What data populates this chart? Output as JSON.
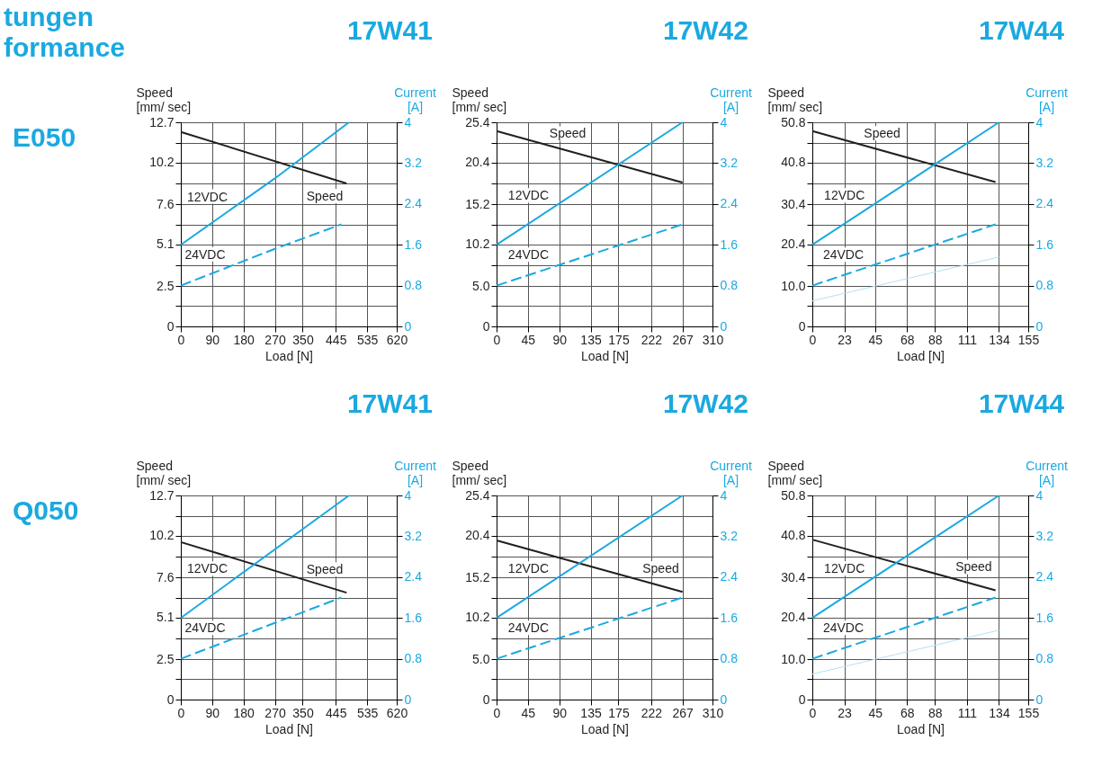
{
  "chart_data": [
    {
      "type": "line",
      "title": "17W41",
      "xlabel": "Load [N]",
      "ylabel": "Speed\n[mm/ sec]",
      "y2label": "Current\n[A]",
      "annotations": [
        "tungen",
        "formance",
        "E050"
      ],
      "grid": true,
      "xlim": [
        0,
        620
      ],
      "xticks": [
        0,
        90,
        180,
        270,
        350,
        445,
        535,
        620
      ],
      "ylim": [
        0,
        12.7
      ],
      "yticks": [
        0,
        {
          "value": 1.27,
          "label": null
        },
        2.5,
        {
          "value": 3.81,
          "label": null
        },
        5.1,
        {
          "value": 6.35,
          "label": null
        },
        7.6,
        {
          "value": 8.89,
          "label": null
        },
        10.2,
        {
          "value": 11.43,
          "label": null
        },
        12.7
      ],
      "y2lim": [
        0,
        4
      ],
      "y2ticks": [
        0,
        0.8,
        1.6,
        2.4,
        3.2,
        4
      ],
      "series": [
        {
          "name": "Speed",
          "color": "#231f20",
          "x": [
            0,
            476
          ],
          "values": [
            12.1,
            8.9
          ]
        },
        {
          "name": "12VDC",
          "color": "#1aa9e0",
          "axis": "y2",
          "x": [
            0,
            270,
            483
          ],
          "values": [
            1.6,
            2.9,
            4.0
          ]
        },
        {
          "name": "24VDC",
          "color": "#1aa9e0",
          "axis": "y2",
          "line_style": "dashed",
          "x": [
            0,
            270,
            461
          ],
          "values": [
            0.8,
            1.52,
            2.0
          ]
        }
      ]
    },
    {
      "type": "line",
      "title": "17W42",
      "xlabel": "Load [N]",
      "ylabel": "Speed\n[mm/ sec]",
      "y2label": "Current\n[A]",
      "grid": true,
      "xlim": [
        0,
        310
      ],
      "xticks": [
        0,
        45,
        90,
        135,
        175,
        222,
        267,
        310
      ],
      "ylim": [
        0,
        25.4
      ],
      "yticks": [
        0,
        {
          "value": 2.54,
          "label": null
        },
        {
          "value": 5,
          "label": "5.0"
        },
        {
          "value": 7.62,
          "label": null
        },
        10.2,
        {
          "value": 12.7,
          "label": null
        },
        15.2,
        {
          "value": 17.78,
          "label": null
        },
        20.4,
        {
          "value": 22.86,
          "label": null
        },
        25.4
      ],
      "y2lim": [
        0,
        4
      ],
      "y2ticks": [
        0,
        0.8,
        1.6,
        2.4,
        3.2,
        4
      ],
      "series": [
        {
          "name": "Speed",
          "color": "#231f20",
          "x": [
            0,
            267
          ],
          "values": [
            24.3,
            17.9
          ]
        },
        {
          "name": "12VDC",
          "color": "#1aa9e0",
          "axis": "y2",
          "x": [
            0,
            267
          ],
          "values": [
            1.6,
            4.0
          ]
        },
        {
          "name": "24VDC",
          "color": "#1aa9e0",
          "axis": "y2",
          "line_style": "dashed",
          "x": [
            0,
            267
          ],
          "values": [
            0.8,
            2.0
          ]
        }
      ]
    },
    {
      "type": "line",
      "title": "17W44",
      "xlabel": "Load [N]",
      "ylabel": "Speed\n[mm/ sec]",
      "y2label": "Current\n[A]",
      "grid": true,
      "xlim": [
        0,
        155
      ],
      "xticks": [
        0,
        23,
        45,
        68,
        88,
        111,
        134,
        155
      ],
      "ylim": [
        0,
        50.8
      ],
      "yticks": [
        0,
        {
          "value": 5.08,
          "label": null
        },
        {
          "value": 10,
          "label": "10.0"
        },
        {
          "value": 15.24,
          "label": null
        },
        20.4,
        {
          "value": 25.4,
          "label": null
        },
        30.4,
        {
          "value": 35.56,
          "label": null
        },
        40.8,
        {
          "value": 45.72,
          "label": null
        },
        50.8
      ],
      "y2lim": [
        0,
        4
      ],
      "y2ticks": [
        0,
        0.8,
        1.6,
        2.4,
        3.2,
        4
      ],
      "series": [
        {
          "name": "Speed",
          "color": "#231f20",
          "x": [
            0,
            131.5
          ],
          "values": [
            48.6,
            35.9
          ]
        },
        {
          "name": "12VDC",
          "color": "#1aa9e0",
          "axis": "y2",
          "x": [
            0,
            134
          ],
          "values": [
            1.6,
            4.0
          ]
        },
        {
          "name": "24VDC",
          "color": "#1aa9e0",
          "axis": "y2",
          "line_style": "dashed",
          "x": [
            0,
            131.5
          ],
          "values": [
            0.8,
            2.0
          ]
        },
        {
          "color": "#b3e0f5",
          "axis": "y2",
          "x": [
            0,
            134
          ],
          "values": [
            0.5,
            1.36
          ]
        }
      ]
    },
    {
      "type": "line",
      "title": "17W41",
      "xlabel": "Load [N]",
      "ylabel": "Speed\n[mm/ sec]",
      "y2label": "Current\n[A]",
      "annotations": [
        "Q050"
      ],
      "grid": true,
      "xlim": [
        0,
        620
      ],
      "xticks": [
        0,
        90,
        180,
        270,
        350,
        445,
        535,
        620
      ],
      "ylim": [
        0,
        12.7
      ],
      "yticks": [
        0,
        {
          "value": 1.27,
          "label": null
        },
        2.5,
        {
          "value": 3.81,
          "label": null
        },
        5.1,
        {
          "value": 6.35,
          "label": null
        },
        7.6,
        {
          "value": 8.89,
          "label": null
        },
        10.2,
        {
          "value": 11.43,
          "label": null
        },
        12.7
      ],
      "y2lim": [
        0,
        4
      ],
      "y2ticks": [
        0,
        0.8,
        1.6,
        2.4,
        3.2,
        4
      ],
      "series": [
        {
          "name": "Speed",
          "color": "#231f20",
          "x": [
            0,
            476
          ],
          "values": [
            9.8,
            6.65
          ]
        },
        {
          "name": "12VDC",
          "color": "#1aa9e0",
          "axis": "y2",
          "x": [
            0,
            483
          ],
          "values": [
            1.6,
            4.0
          ]
        },
        {
          "name": "24VDC",
          "color": "#1aa9e0",
          "axis": "y2",
          "line_style": "dashed",
          "x": [
            0,
            461
          ],
          "values": [
            0.8,
            2.0
          ]
        }
      ]
    },
    {
      "type": "line",
      "title": "17W42",
      "xlabel": "Load [N]",
      "ylabel": "Speed\n[mm/ sec]",
      "y2label": "Current\n[A]",
      "grid": true,
      "xlim": [
        0,
        310
      ],
      "xticks": [
        0,
        45,
        90,
        135,
        175,
        222,
        267,
        310
      ],
      "ylim": [
        0,
        25.4
      ],
      "yticks": [
        0,
        {
          "value": 2.54,
          "label": null
        },
        {
          "value": 5,
          "label": "5.0"
        },
        {
          "value": 7.62,
          "label": null
        },
        10.2,
        {
          "value": 12.7,
          "label": null
        },
        15.2,
        {
          "value": 17.78,
          "label": null
        },
        20.4,
        {
          "value": 22.86,
          "label": null
        },
        25.4
      ],
      "y2lim": [
        0,
        4
      ],
      "y2ticks": [
        0,
        0.8,
        1.6,
        2.4,
        3.2,
        4
      ],
      "series": [
        {
          "name": "Speed",
          "color": "#231f20",
          "x": [
            0,
            267
          ],
          "values": [
            19.8,
            13.4
          ]
        },
        {
          "name": "12VDC",
          "color": "#1aa9e0",
          "axis": "y2",
          "x": [
            0,
            267
          ],
          "values": [
            1.6,
            4.0
          ]
        },
        {
          "name": "24VDC",
          "color": "#1aa9e0",
          "axis": "y2",
          "line_style": "dashed",
          "x": [
            0,
            267
          ],
          "values": [
            0.8,
            2.0
          ]
        }
      ]
    },
    {
      "type": "line",
      "title": "17W44",
      "xlabel": "Load [N]",
      "ylabel": "Speed\n[mm/ sec]",
      "y2label": "Current\n[A]",
      "grid": true,
      "xlim": [
        0,
        155
      ],
      "xticks": [
        0,
        23,
        45,
        68,
        88,
        111,
        134,
        155
      ],
      "ylim": [
        0,
        50.8
      ],
      "yticks": [
        0,
        {
          "value": 5.08,
          "label": null
        },
        {
          "value": 10,
          "label": "10.0"
        },
        {
          "value": 15.24,
          "label": null
        },
        20.4,
        {
          "value": 25.4,
          "label": null
        },
        30.4,
        {
          "value": 35.56,
          "label": null
        },
        40.8,
        {
          "value": 45.72,
          "label": null
        },
        50.8
      ],
      "y2lim": [
        0,
        4
      ],
      "y2ticks": [
        0,
        0.8,
        1.6,
        2.4,
        3.2,
        4
      ],
      "series": [
        {
          "name": "Speed",
          "color": "#231f20",
          "x": [
            0,
            131.5
          ],
          "values": [
            39.8,
            27.2
          ]
        },
        {
          "name": "12VDC",
          "color": "#1aa9e0",
          "axis": "y2",
          "x": [
            0,
            134
          ],
          "values": [
            1.6,
            4.0
          ]
        },
        {
          "name": "24VDC",
          "color": "#1aa9e0",
          "axis": "y2",
          "line_style": "dashed",
          "x": [
            0,
            131.5
          ],
          "values": [
            0.8,
            2.0
          ]
        },
        {
          "color": "#b3e0f5",
          "axis": "y2",
          "x": [
            0,
            134
          ],
          "values": [
            0.5,
            1.36
          ]
        }
      ]
    }
  ]
}
